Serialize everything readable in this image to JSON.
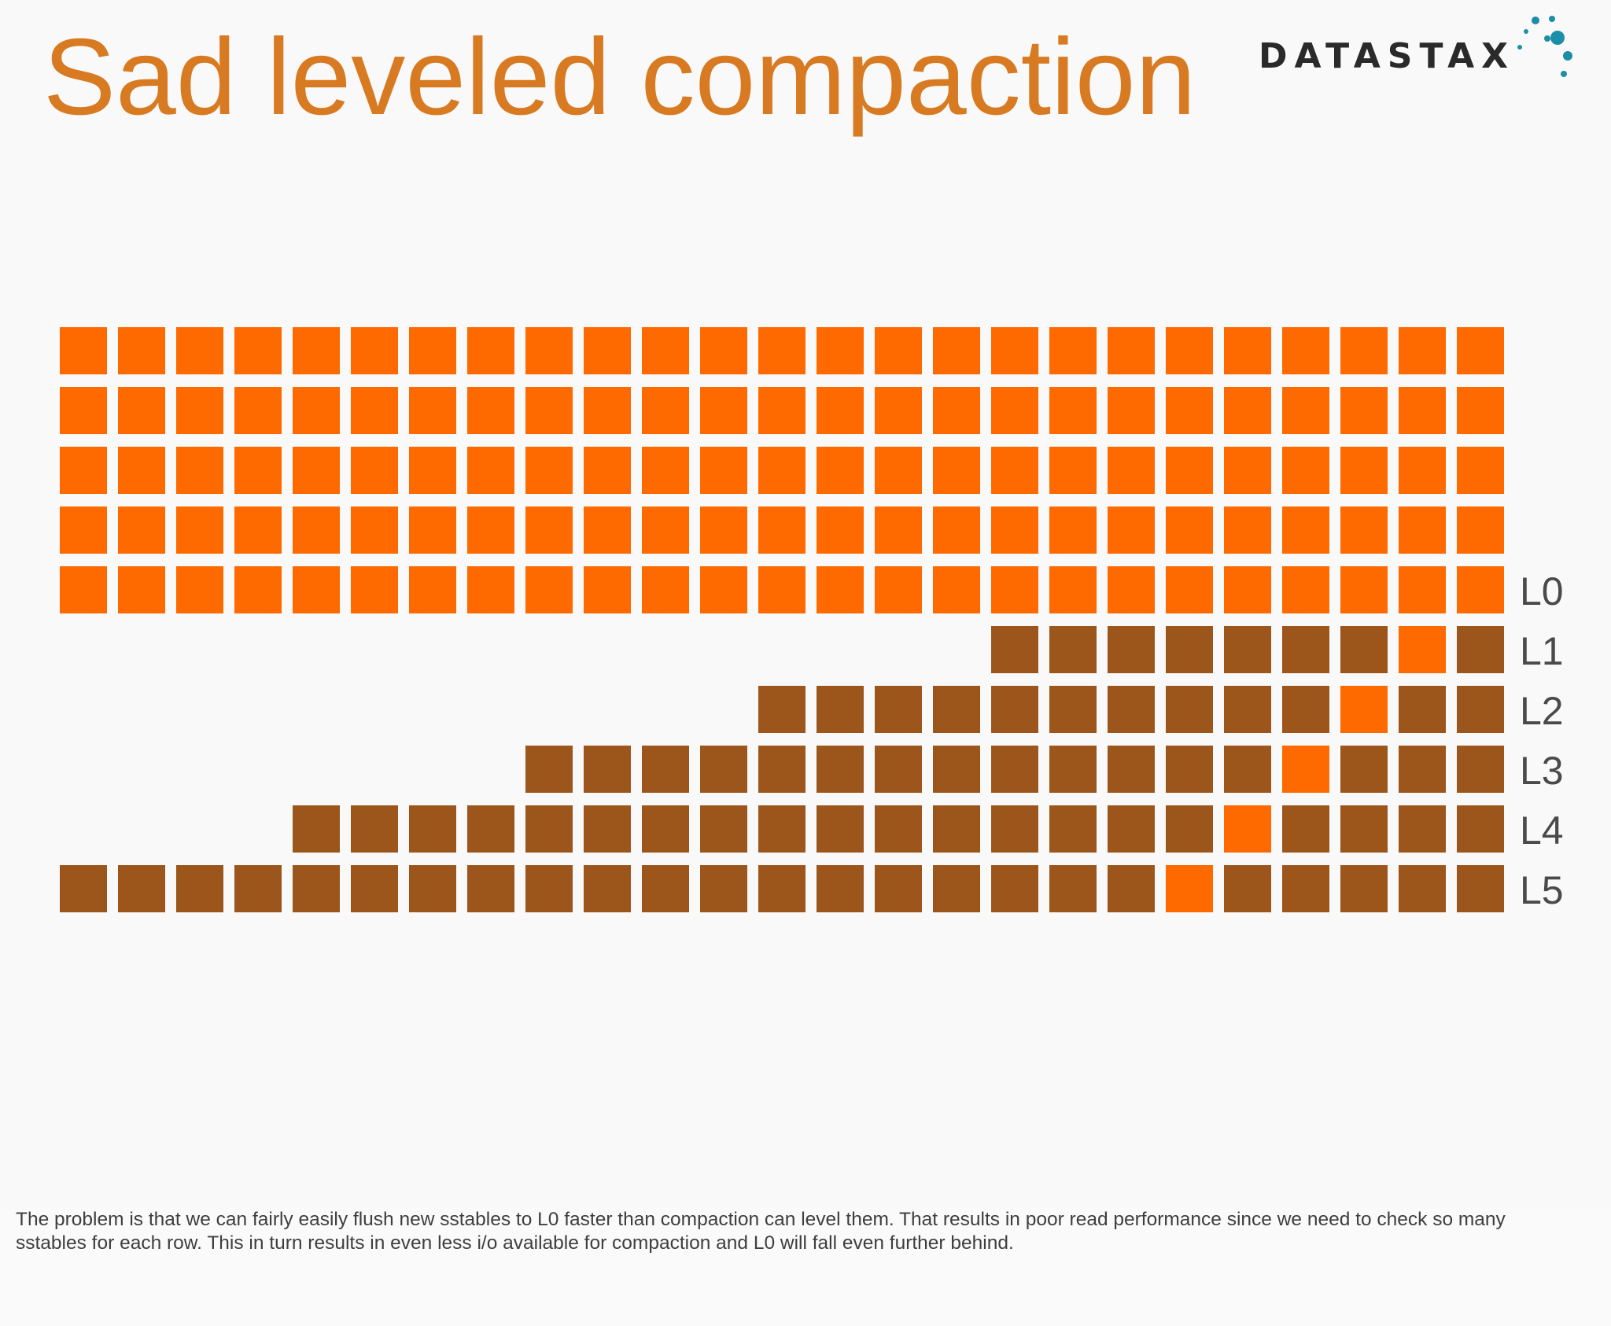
{
  "slide": {
    "title": "Sad leveled compaction",
    "logo": {
      "text": "DATASTAX",
      "icon": "datastax-dots-logo",
      "dot_color": "#1d8ea8"
    }
  },
  "diagram": {
    "cell_colors": {
      "new": "#ff6a00",
      "leveled": "#9c561c"
    },
    "l0_rows": 5,
    "l0_cells_per_row": 25,
    "levels": [
      {
        "label": "L0"
      },
      {
        "label": "L1",
        "cells": 9,
        "highlight_index": 7
      },
      {
        "label": "L2",
        "cells": 13,
        "highlight_index": 10
      },
      {
        "label": "L3",
        "cells": 17,
        "highlight_index": 13
      },
      {
        "label": "L4",
        "cells": 21,
        "highlight_index": 16
      },
      {
        "label": "L5",
        "cells": 25,
        "highlight_index": 19
      }
    ]
  },
  "note": {
    "line1": "The problem is that we can fairly easily flush new sstables to L0 faster than compaction can level them.  That results in poor read performance since we need to check so many",
    "line2": "sstables for each row.  This in turn results in even less i/o available for compaction and L0 will fall even further behind."
  }
}
